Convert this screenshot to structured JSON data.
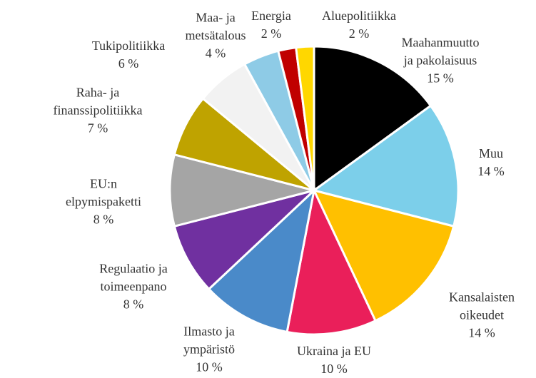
{
  "chart_data": {
    "type": "pie",
    "categories": [
      "Maahanmuutto\nja pakolaisuus",
      "Muu",
      "Kansalaisten\noikeudet",
      "Ukraina ja EU",
      "Ilmasto ja\nympäristö",
      "Regulaatio ja\ntoimeenpano",
      "EU:n\nelpymispaketti",
      "Raha- ja\nfinanssipolitiikka",
      "Tukipolitiikka",
      "Maa- ja\nmetsätalous",
      "Energia",
      "Aluepolitiikka"
    ],
    "values": [
      15,
      14,
      14,
      10,
      10,
      8,
      8,
      7,
      6,
      4,
      2,
      2
    ],
    "value_labels": [
      "15 %",
      "14 %",
      "14 %",
      "10 %",
      "10 %",
      "8 %",
      "8 %",
      "7 %",
      "6 %",
      "4 %",
      "2 %",
      "2 %"
    ],
    "colors": [
      "#000000",
      "#7ccfea",
      "#ffc000",
      "#ea1f5a",
      "#4a8ac9",
      "#7030a0",
      "#a5a5a5",
      "#bfa300",
      "#f2f2f2",
      "#8ecbe6",
      "#c00000",
      "#ffd700"
    ]
  }
}
